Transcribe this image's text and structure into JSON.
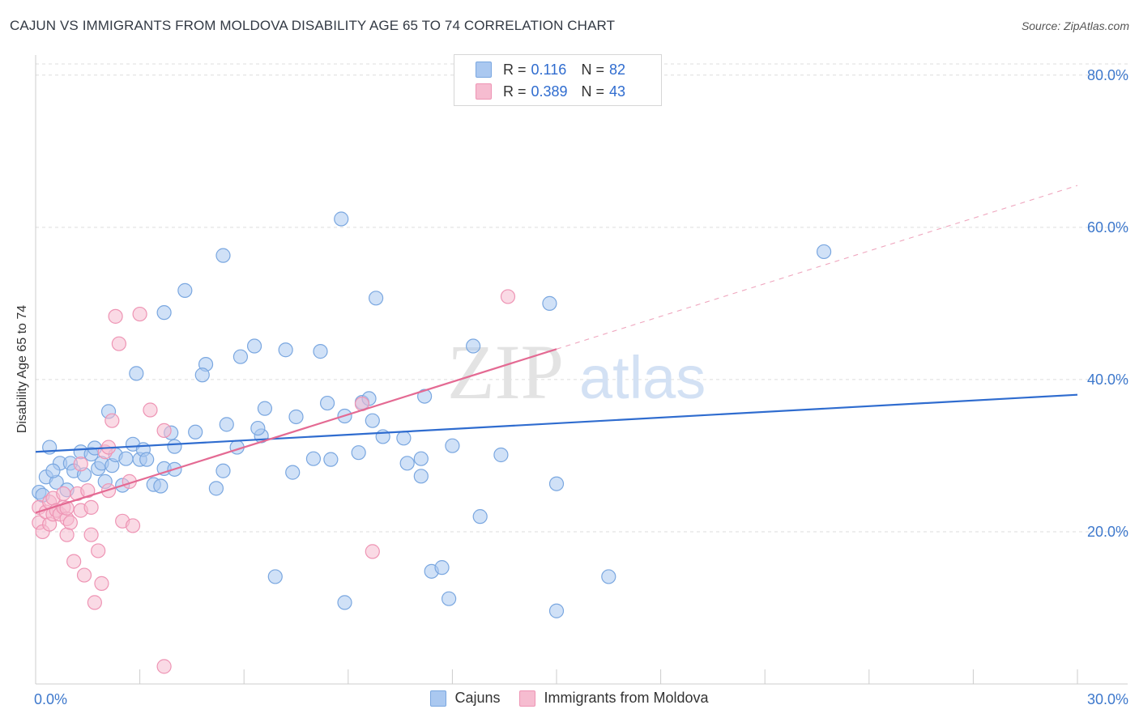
{
  "title": "CAJUN VS IMMIGRANTS FROM MOLDOVA DISABILITY AGE 65 TO 74 CORRELATION CHART",
  "source": "Source: ZipAtlas.com",
  "watermark": {
    "zip": "ZIP",
    "atlas": "atlas"
  },
  "legend_top": [
    {
      "r_label": "R =",
      "r_value": "0.116",
      "n_label": "N =",
      "n_value": "82"
    },
    {
      "r_label": "R =",
      "r_value": "0.389",
      "n_label": "N =",
      "n_value": "43"
    }
  ],
  "colors": {
    "blue_fill": "#aac8f0",
    "blue_stroke": "#7aa7e0",
    "blue_line": "#2f6ccf",
    "pink_fill": "#f6bcd0",
    "pink_stroke": "#ee94b4",
    "pink_line": "#e46a93",
    "tick_label": "#3d78cc",
    "grid": "#dddddd"
  },
  "chart_data": {
    "type": "scatter",
    "title": "CAJUN VS IMMIGRANTS FROM MOLDOVA DISABILITY AGE 65 TO 74 CORRELATION CHART",
    "xlabel": "",
    "ylabel": "Disability Age 65 to 74",
    "xlim": [
      0,
      30
    ],
    "ylim": [
      0,
      82
    ],
    "x_tick_labels": [
      "0.0%",
      "30.0%"
    ],
    "y_ticks": [
      20,
      40,
      60,
      80
    ],
    "y_tick_labels": [
      "20.0%",
      "40.0%",
      "60.0%",
      "80.0%"
    ],
    "grid": true,
    "legend_position": "bottom",
    "series": [
      {
        "name": "Cajuns",
        "color": "#aac8f0",
        "r": 0.116,
        "n": 82,
        "trend": {
          "x0": 0,
          "y0": 30.5,
          "x1": 30,
          "y1": 38.0,
          "dashed_from": null
        },
        "points": [
          [
            0.1,
            25.2
          ],
          [
            0.2,
            24.8
          ],
          [
            0.3,
            27.2
          ],
          [
            0.4,
            31.1
          ],
          [
            0.6,
            26.5
          ],
          [
            0.7,
            29.0
          ],
          [
            0.9,
            25.5
          ],
          [
            1.0,
            29.0
          ],
          [
            1.1,
            28.0
          ],
          [
            1.3,
            30.5
          ],
          [
            1.4,
            27.5
          ],
          [
            1.6,
            30.2
          ],
          [
            1.8,
            28.3
          ],
          [
            1.9,
            29.0
          ],
          [
            2.0,
            26.6
          ],
          [
            2.2,
            28.7
          ],
          [
            2.3,
            30.1
          ],
          [
            2.5,
            26.1
          ],
          [
            2.6,
            29.6
          ],
          [
            2.8,
            31.5
          ],
          [
            3.0,
            29.5
          ],
          [
            3.1,
            30.8
          ],
          [
            3.4,
            26.2
          ],
          [
            3.6,
            26.0
          ],
          [
            3.7,
            28.3
          ],
          [
            3.9,
            33.0
          ],
          [
            4.0,
            31.2
          ],
          [
            4.6,
            33.1
          ],
          [
            4.9,
            42.0
          ],
          [
            5.2,
            25.7
          ],
          [
            5.4,
            28.0
          ],
          [
            5.5,
            34.1
          ],
          [
            5.8,
            31.1
          ],
          [
            6.5,
            32.6
          ],
          [
            6.6,
            36.2
          ],
          [
            7.5,
            35.1
          ],
          [
            8.0,
            29.6
          ],
          [
            8.5,
            29.5
          ],
          [
            8.9,
            35.2
          ],
          [
            9.3,
            30.4
          ],
          [
            9.7,
            34.6
          ],
          [
            10.6,
            32.3
          ],
          [
            10.7,
            29.0
          ],
          [
            11.1,
            27.3
          ],
          [
            11.2,
            37.8
          ],
          [
            12.0,
            31.3
          ],
          [
            12.8,
            22.0
          ],
          [
            2.9,
            40.8
          ],
          [
            3.7,
            48.8
          ],
          [
            4.3,
            51.7
          ],
          [
            4.8,
            40.6
          ],
          [
            5.4,
            56.3
          ],
          [
            5.9,
            43.0
          ],
          [
            6.3,
            44.4
          ],
          [
            7.2,
            43.9
          ],
          [
            8.2,
            43.7
          ],
          [
            8.8,
            61.1
          ],
          [
            9.4,
            37.0
          ],
          [
            9.8,
            50.7
          ],
          [
            12.6,
            44.4
          ],
          [
            14.8,
            50.0
          ],
          [
            22.7,
            56.8
          ],
          [
            9.6,
            37.5
          ],
          [
            6.9,
            14.1
          ],
          [
            8.9,
            10.7
          ],
          [
            11.4,
            14.8
          ],
          [
            11.7,
            15.3
          ],
          [
            11.9,
            11.2
          ],
          [
            15.0,
            26.3
          ],
          [
            15.0,
            9.6
          ],
          [
            16.5,
            14.1
          ],
          [
            2.1,
            35.8
          ],
          [
            3.2,
            29.5
          ],
          [
            4.0,
            28.2
          ],
          [
            7.4,
            27.8
          ],
          [
            8.4,
            36.9
          ],
          [
            0.5,
            28.0
          ],
          [
            1.7,
            31.0
          ],
          [
            10.0,
            32.5
          ],
          [
            11.1,
            29.6
          ],
          [
            13.4,
            30.1
          ],
          [
            6.4,
            33.6
          ]
        ]
      },
      {
        "name": "Immigrants from Moldova",
        "color": "#f6bcd0",
        "r": 0.389,
        "n": 43,
        "trend": {
          "x0": 0,
          "y0": 22.5,
          "x1": 15,
          "y1": 44.0,
          "dashed_from": 15,
          "dashed_x1": 30,
          "dashed_y1": 65.5
        },
        "points": [
          [
            0.1,
            23.2
          ],
          [
            0.1,
            21.2
          ],
          [
            0.2,
            20.0
          ],
          [
            0.3,
            22.6
          ],
          [
            0.4,
            21.0
          ],
          [
            0.4,
            23.9
          ],
          [
            0.5,
            22.3
          ],
          [
            0.5,
            24.4
          ],
          [
            0.6,
            22.8
          ],
          [
            0.7,
            22.3
          ],
          [
            0.8,
            23.2
          ],
          [
            0.8,
            25.0
          ],
          [
            0.9,
            21.7
          ],
          [
            0.9,
            19.6
          ],
          [
            1.0,
            21.2
          ],
          [
            1.1,
            16.1
          ],
          [
            1.2,
            25.0
          ],
          [
            1.3,
            22.8
          ],
          [
            1.4,
            14.3
          ],
          [
            1.5,
            25.4
          ],
          [
            1.6,
            19.6
          ],
          [
            1.6,
            23.2
          ],
          [
            1.7,
            10.7
          ],
          [
            1.8,
            17.5
          ],
          [
            1.9,
            13.2
          ],
          [
            2.0,
            30.5
          ],
          [
            2.1,
            25.4
          ],
          [
            2.1,
            31.1
          ],
          [
            2.2,
            34.6
          ],
          [
            2.3,
            48.3
          ],
          [
            2.4,
            44.7
          ],
          [
            2.5,
            21.4
          ],
          [
            2.7,
            26.6
          ],
          [
            2.8,
            20.8
          ],
          [
            3.0,
            48.6
          ],
          [
            3.3,
            36.0
          ],
          [
            3.7,
            33.3
          ],
          [
            3.7,
            2.3
          ],
          [
            9.4,
            36.8
          ],
          [
            9.7,
            17.4
          ],
          [
            13.6,
            50.9
          ],
          [
            0.9,
            23.1
          ],
          [
            1.3,
            28.9
          ]
        ]
      }
    ]
  }
}
